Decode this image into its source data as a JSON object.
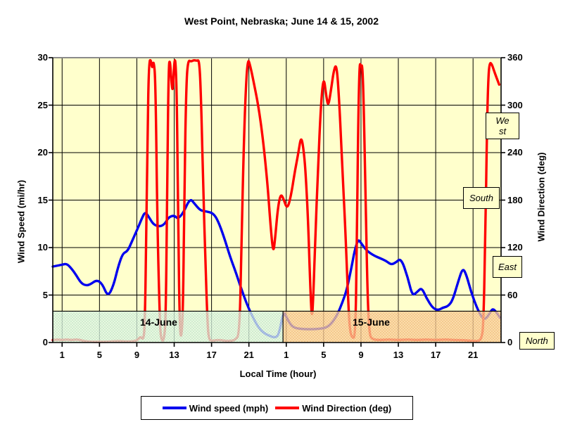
{
  "title": "West Point, Nebraska; June 14 & 15, 2002",
  "colors": {
    "plot_bg": "#ffffcc",
    "grid": "#000000",
    "plot_border_top": "#8a8a8a",
    "speed_line": "#0000ee",
    "direction_line": "#ff0000",
    "band_june14": "#e2f5e7",
    "band_june14_dot": "#9fd8b4",
    "band_june15": "#fad3a2",
    "band_june15_dot": "#e89a50"
  },
  "chart_data": {
    "type": "line",
    "title": "West Point, Nebraska; June 14 & 15, 2002",
    "xlabel": "Local Time (hour)",
    "x_range_hours": [
      0,
      48
    ],
    "x_tick_hours": [
      1,
      5,
      9,
      13,
      17,
      21,
      25,
      29,
      33,
      37,
      41,
      45
    ],
    "x_tick_labels": [
      "1",
      "5",
      "9",
      "13",
      "17",
      "21",
      "1",
      "5",
      "9",
      "13",
      "17",
      "21"
    ],
    "y_left": {
      "label": "Wind Speed (mi/hr)",
      "range": [
        0,
        30
      ],
      "ticks": [
        0,
        5,
        10,
        15,
        20,
        25,
        30
      ]
    },
    "y_right": {
      "label": "Wind Direction (deg)",
      "range": [
        0,
        360
      ],
      "ticks": [
        0,
        60,
        120,
        180,
        240,
        300,
        360
      ]
    },
    "grid": "on",
    "legend_position": "bottom",
    "day_bands": [
      {
        "label": "14-June",
        "from_hour": 0,
        "to_hour": 24.65,
        "top_value_mph": 3.3
      },
      {
        "label": "15-June",
        "from_hour": 24.65,
        "to_hour": 48,
        "top_value_mph": 3.3
      }
    ],
    "direction_annotations": [
      {
        "text": "West",
        "deg": 270
      },
      {
        "text": "South",
        "deg": 180
      },
      {
        "text": "East",
        "deg": 90
      },
      {
        "text": "North",
        "deg": 0
      }
    ],
    "series": [
      {
        "name": "Wind speed (mph)",
        "axis": "left",
        "color": "#0000ee",
        "points": [
          [
            0,
            8.0
          ],
          [
            0.5,
            8.1
          ],
          [
            1,
            8.2
          ],
          [
            1.5,
            8.3
          ],
          [
            2,
            7.8
          ],
          [
            2.5,
            7.1
          ],
          [
            3,
            6.3
          ],
          [
            3.5,
            6.0
          ],
          [
            4,
            6.1
          ],
          [
            4.7,
            6.6
          ],
          [
            5.3,
            6.2
          ],
          [
            5.9,
            4.8
          ],
          [
            6.5,
            6.0
          ],
          [
            7,
            8.0
          ],
          [
            7.5,
            9.4
          ],
          [
            8,
            9.6
          ],
          [
            8.5,
            10.7
          ],
          [
            9,
            11.8
          ],
          [
            9.5,
            13.0
          ],
          [
            9.9,
            13.8
          ],
          [
            10.3,
            13.2
          ],
          [
            10.8,
            12.4
          ],
          [
            11.5,
            12.2
          ],
          [
            12,
            12.5
          ],
          [
            12.4,
            13.2
          ],
          [
            13,
            13.4
          ],
          [
            13.4,
            13.0
          ],
          [
            14,
            13.7
          ],
          [
            14.7,
            15.2
          ],
          [
            15.2,
            14.6
          ],
          [
            15.8,
            13.9
          ],
          [
            16.5,
            13.8
          ],
          [
            17.2,
            13.6
          ],
          [
            17.7,
            12.8
          ],
          [
            18.3,
            11.2
          ],
          [
            19,
            9.0
          ],
          [
            19.6,
            7.4
          ],
          [
            20.2,
            5.6
          ],
          [
            20.8,
            4.0
          ],
          [
            21.4,
            2.7
          ],
          [
            22,
            1.6
          ],
          [
            22.6,
            1.0
          ],
          [
            23.2,
            0.7
          ],
          [
            23.8,
            0.5
          ],
          [
            24.2,
            0.8
          ],
          [
            24.7,
            3.3
          ],
          [
            25,
            2.7
          ],
          [
            25.5,
            1.8
          ],
          [
            26,
            1.5
          ],
          [
            27,
            1.4
          ],
          [
            28,
            1.4
          ],
          [
            29,
            1.5
          ],
          [
            29.5,
            1.7
          ],
          [
            30,
            2.2
          ],
          [
            30.5,
            3.0
          ],
          [
            31,
            4.2
          ],
          [
            31.5,
            5.6
          ],
          [
            32,
            8.0
          ],
          [
            32.3,
            9.6
          ],
          [
            32.7,
            10.9
          ],
          [
            33,
            10.5
          ],
          [
            33.5,
            9.8
          ],
          [
            34,
            9.4
          ],
          [
            34.5,
            9.1
          ],
          [
            35,
            8.9
          ],
          [
            35.7,
            8.6
          ],
          [
            36.2,
            8.2
          ],
          [
            36.7,
            8.4
          ],
          [
            37.3,
            8.9
          ],
          [
            38,
            6.9
          ],
          [
            38.5,
            4.9
          ],
          [
            39,
            5.3
          ],
          [
            39.5,
            5.8
          ],
          [
            40,
            4.7
          ],
          [
            40.7,
            3.6
          ],
          [
            41.3,
            3.4
          ],
          [
            41.8,
            3.7
          ],
          [
            42.3,
            3.8
          ],
          [
            42.8,
            4.4
          ],
          [
            43.4,
            6.4
          ],
          [
            43.9,
            7.9
          ],
          [
            44.3,
            7.1
          ],
          [
            44.8,
            5.3
          ],
          [
            45.4,
            3.7
          ],
          [
            45.9,
            2.7
          ],
          [
            46.3,
            2.4
          ],
          [
            46.8,
            3.1
          ],
          [
            47.1,
            3.6
          ],
          [
            47.5,
            3.2
          ],
          [
            47.9,
            2.6
          ]
        ]
      },
      {
        "name": "Wind Direction (deg)",
        "axis": "right",
        "color": "#ff0000",
        "points": [
          [
            0,
            3
          ],
          [
            0.5,
            4
          ],
          [
            1,
            3
          ],
          [
            1.5,
            4
          ],
          [
            2,
            3
          ],
          [
            2.5,
            4
          ],
          [
            3,
            3
          ],
          [
            3.3,
            2
          ],
          [
            4,
            1
          ],
          [
            5,
            1
          ],
          [
            6,
            1
          ],
          [
            7,
            2
          ],
          [
            8,
            1
          ],
          [
            9,
            2
          ],
          [
            9.4,
            8
          ],
          [
            9.7,
            3
          ],
          [
            9.85,
            20
          ],
          [
            10.0,
            120
          ],
          [
            10.15,
            270
          ],
          [
            10.3,
            355
          ],
          [
            10.5,
            358
          ],
          [
            10.65,
            345
          ],
          [
            10.8,
            358
          ],
          [
            11.0,
            330
          ],
          [
            11.2,
            150
          ],
          [
            11.45,
            30
          ],
          [
            11.6,
            3
          ],
          [
            11.9,
            2
          ],
          [
            12.1,
            30
          ],
          [
            12.25,
            200
          ],
          [
            12.4,
            350
          ],
          [
            12.55,
            358
          ],
          [
            12.7,
            330
          ],
          [
            12.85,
            315
          ],
          [
            13.0,
            355
          ],
          [
            13.15,
            358
          ],
          [
            13.3,
            300
          ],
          [
            13.45,
            120
          ],
          [
            13.6,
            20
          ],
          [
            13.75,
            3
          ],
          [
            13.95,
            40
          ],
          [
            14.1,
            200
          ],
          [
            14.3,
            330
          ],
          [
            14.5,
            357
          ],
          [
            14.8,
            355
          ],
          [
            15.1,
            357
          ],
          [
            15.4,
            356
          ],
          [
            15.7,
            357
          ],
          [
            15.9,
            300
          ],
          [
            16.1,
            200
          ],
          [
            16.35,
            100
          ],
          [
            16.55,
            30
          ],
          [
            16.7,
            4
          ],
          [
            17,
            2
          ],
          [
            17.5,
            3
          ],
          [
            18,
            3
          ],
          [
            18.5,
            2
          ],
          [
            19,
            2
          ],
          [
            19.5,
            3
          ],
          [
            20.0,
            10
          ],
          [
            20.2,
            120
          ],
          [
            20.45,
            250
          ],
          [
            20.7,
            330
          ],
          [
            20.9,
            358
          ],
          [
            21.1,
            352
          ],
          [
            21.5,
            330
          ],
          [
            22.0,
            300
          ],
          [
            22.5,
            258
          ],
          [
            23.0,
            200
          ],
          [
            23.3,
            150
          ],
          [
            23.6,
            112
          ],
          [
            23.8,
            130
          ],
          [
            24.1,
            170
          ],
          [
            24.4,
            188
          ],
          [
            24.7,
            182
          ],
          [
            25.1,
            168
          ],
          [
            25.5,
            185
          ],
          [
            25.9,
            215
          ],
          [
            26.3,
            240
          ],
          [
            26.6,
            262
          ],
          [
            26.9,
            240
          ],
          [
            27.1,
            210
          ],
          [
            27.35,
            150
          ],
          [
            27.6,
            60
          ],
          [
            27.75,
            28
          ],
          [
            27.9,
            60
          ],
          [
            28.1,
            130
          ],
          [
            28.4,
            220
          ],
          [
            28.7,
            300
          ],
          [
            29.0,
            338
          ],
          [
            29.3,
            310
          ],
          [
            29.5,
            298
          ],
          [
            29.8,
            320
          ],
          [
            30.1,
            345
          ],
          [
            30.4,
            352
          ],
          [
            30.7,
            300
          ],
          [
            31.0,
            220
          ],
          [
            31.3,
            150
          ],
          [
            31.6,
            60
          ],
          [
            31.8,
            15
          ],
          [
            32.1,
            5
          ],
          [
            32.4,
            8
          ],
          [
            32.55,
            120
          ],
          [
            32.7,
            280
          ],
          [
            32.85,
            355
          ],
          [
            33.0,
            348
          ],
          [
            33.15,
            352
          ],
          [
            33.3,
            300
          ],
          [
            33.5,
            180
          ],
          [
            33.7,
            60
          ],
          [
            33.9,
            10
          ],
          [
            34.2,
            4
          ],
          [
            35,
            3
          ],
          [
            36,
            4
          ],
          [
            37,
            3
          ],
          [
            38,
            4
          ],
          [
            39,
            3
          ],
          [
            40,
            4
          ],
          [
            41,
            3
          ],
          [
            42,
            4
          ],
          [
            43,
            3
          ],
          [
            44,
            3
          ],
          [
            45,
            2
          ],
          [
            45.6,
            2
          ],
          [
            45.9,
            5
          ],
          [
            46.1,
            20
          ],
          [
            46.3,
            120
          ],
          [
            46.5,
            280
          ],
          [
            46.65,
            340
          ],
          [
            46.8,
            354
          ],
          [
            47.0,
            352
          ],
          [
            47.2,
            345
          ],
          [
            47.5,
            335
          ],
          [
            47.8,
            326
          ]
        ]
      }
    ]
  },
  "legend": {
    "items": [
      {
        "label": "Wind speed (mph)",
        "color": "#0000ee"
      },
      {
        "label": "Wind Direction (deg)",
        "color": "#ff0000"
      }
    ]
  }
}
